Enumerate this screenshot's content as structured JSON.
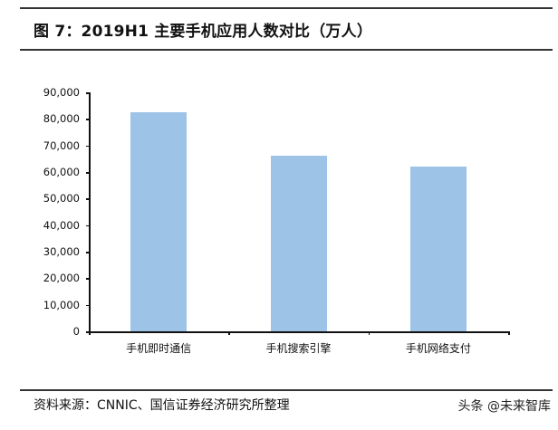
{
  "header": {
    "title": "图 7：2019H1 主要手机应用人数对比（万人）"
  },
  "footer": {
    "source": "资料来源：CNNIC、国信证券经济研究所整理",
    "watermark": "头条 @未来智库"
  },
  "chart_data": {
    "type": "bar",
    "title": "图 7：2019H1 主要手机应用人数对比（万人）",
    "xlabel": "",
    "ylabel": "",
    "categories": [
      "手机即时通信",
      "手机搜索引擎",
      "手机网络支付"
    ],
    "values": [
      82470,
      66000,
      62000
    ],
    "ylim": [
      0,
      90000
    ],
    "yticks": [
      "0",
      "10,000",
      "20,000",
      "30,000",
      "40,000",
      "50,000",
      "60,000",
      "70,000",
      "80,000",
      "90,000"
    ],
    "bar_color": "#9dc3e6",
    "grid": false,
    "legend": null
  }
}
